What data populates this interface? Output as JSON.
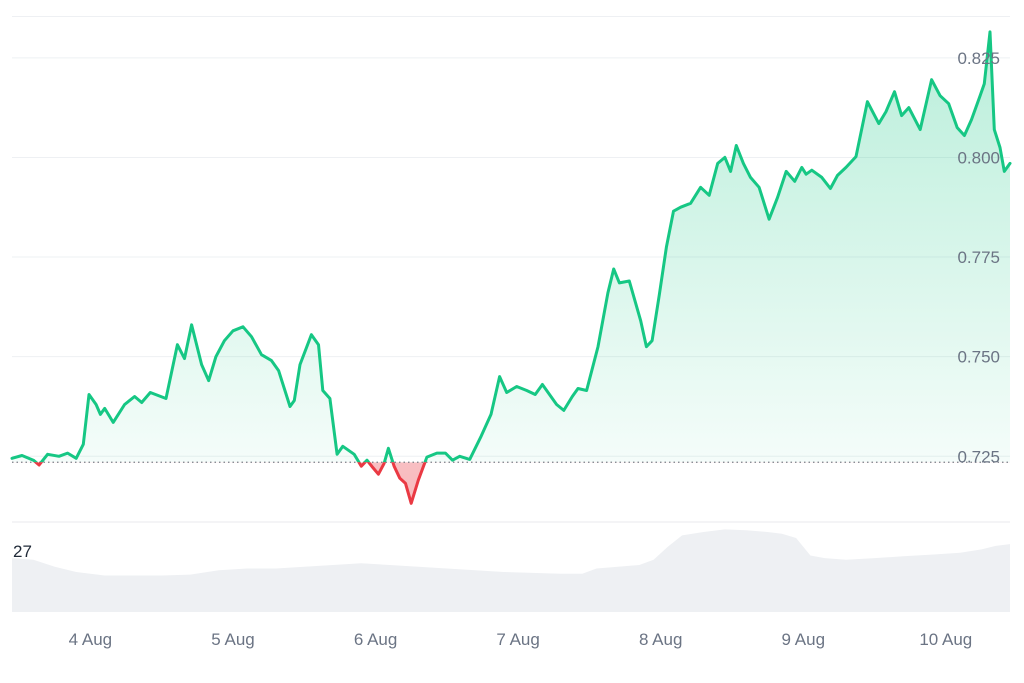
{
  "chart_data": {
    "type": "area",
    "title": "",
    "xlabel": "",
    "ylabel": "",
    "baseline": 0.7235,
    "ylim": [
      0.7085,
      0.8355
    ],
    "yticks": [
      0.725,
      0.75,
      0.775,
      0.8,
      0.825
    ],
    "ytick_labels": [
      "0.725",
      "0.750",
      "0.775",
      "0.800",
      "0.825"
    ],
    "xlim": [
      3.45,
      10.45
    ],
    "xticks": [
      4,
      5,
      6,
      7,
      8,
      9,
      10
    ],
    "xtick_labels": [
      "4 Aug",
      "5 Aug",
      "6 Aug",
      "7 Aug",
      "8 Aug",
      "9 Aug",
      "10 Aug"
    ],
    "grid": true,
    "colors": {
      "up": "#16c784",
      "down": "#ea3943",
      "baseline": "#7a7f87",
      "grid": "#eef0f3",
      "volume": "#eef0f3"
    },
    "series": [
      {
        "x": [
          3.45,
          3.52,
          3.6,
          3.64,
          3.7,
          3.78,
          3.84,
          3.9,
          3.95,
          3.99,
          4.04,
          4.07,
          4.1,
          4.16,
          4.24,
          4.31,
          4.36,
          4.42,
          4.53,
          4.61,
          4.66,
          4.71,
          4.78,
          4.83,
          4.88,
          4.94,
          5.0,
          5.07,
          5.13,
          5.2,
          5.27,
          5.32,
          5.4,
          5.43,
          5.47,
          5.55,
          5.6,
          5.63,
          5.68,
          5.73,
          5.77,
          5.85,
          5.9,
          5.94,
          5.98,
          6.02,
          6.06,
          6.09,
          6.13,
          6.17,
          6.21,
          6.25,
          6.3,
          6.36,
          6.43,
          6.49,
          6.54,
          6.59,
          6.66,
          6.74,
          6.81,
          6.87,
          6.92,
          6.99,
          7.06,
          7.12,
          7.17,
          7.27,
          7.32,
          7.38,
          7.42,
          7.48,
          7.56,
          7.63,
          7.67,
          7.71,
          7.78,
          7.86,
          7.9,
          7.94,
          7.99,
          8.04,
          8.09,
          8.14,
          8.21,
          8.28,
          8.34,
          8.4,
          8.45,
          8.49,
          8.53,
          8.58,
          8.63,
          8.69,
          8.76,
          8.82,
          8.88,
          8.94,
          8.99,
          9.02,
          9.06,
          9.13,
          9.19,
          9.24,
          9.3,
          9.37,
          9.45,
          9.53,
          9.58,
          9.64,
          9.69,
          9.74,
          9.82,
          9.9,
          9.96,
          10.02,
          10.08,
          10.13,
          10.18,
          10.24,
          10.27,
          10.31,
          10.34,
          10.38,
          10.41,
          10.45
        ],
        "y": [
          0.7245,
          0.7252,
          0.724,
          0.7228,
          0.7255,
          0.725,
          0.7258,
          0.7245,
          0.728,
          0.7405,
          0.738,
          0.7355,
          0.737,
          0.7335,
          0.738,
          0.74,
          0.7385,
          0.741,
          0.7395,
          0.753,
          0.7495,
          0.758,
          0.748,
          0.744,
          0.75,
          0.754,
          0.7565,
          0.7575,
          0.755,
          0.7505,
          0.749,
          0.7465,
          0.7375,
          0.739,
          0.748,
          0.7555,
          0.753,
          0.7415,
          0.7395,
          0.7255,
          0.7275,
          0.7255,
          0.7225,
          0.724,
          0.7222,
          0.7205,
          0.7232,
          0.727,
          0.7225,
          0.7195,
          0.7182,
          0.7132,
          0.719,
          0.7248,
          0.7258,
          0.7258,
          0.724,
          0.725,
          0.7242,
          0.73,
          0.7355,
          0.745,
          0.741,
          0.7425,
          0.7415,
          0.7405,
          0.743,
          0.738,
          0.7365,
          0.74,
          0.742,
          0.7415,
          0.7525,
          0.766,
          0.772,
          0.7685,
          0.769,
          0.759,
          0.7525,
          0.754,
          0.7655,
          0.7775,
          0.7865,
          0.7875,
          0.7885,
          0.7925,
          0.7905,
          0.7985,
          0.8,
          0.7965,
          0.803,
          0.7985,
          0.795,
          0.7925,
          0.7845,
          0.79,
          0.7965,
          0.794,
          0.7975,
          0.7958,
          0.7968,
          0.795,
          0.7922,
          0.7955,
          0.7975,
          0.8002,
          0.814,
          0.8085,
          0.8115,
          0.8165,
          0.8105,
          0.8125,
          0.807,
          0.8195,
          0.8155,
          0.8135,
          0.8075,
          0.8055,
          0.8095,
          0.8155,
          0.8185,
          0.8315,
          0.807,
          0.8025,
          0.7965,
          0.7985
        ]
      }
    ],
    "volume": {
      "label": "27",
      "x": [
        3.45,
        3.6,
        3.75,
        3.9,
        4.1,
        4.3,
        4.5,
        4.7,
        4.9,
        5.1,
        5.3,
        5.5,
        5.7,
        5.9,
        6.1,
        6.3,
        6.5,
        6.7,
        6.9,
        7.1,
        7.3,
        7.45,
        7.55,
        7.7,
        7.85,
        7.95,
        8.05,
        8.15,
        8.3,
        8.45,
        8.6,
        8.75,
        8.85,
        8.95,
        9.05,
        9.15,
        9.3,
        9.5,
        9.7,
        9.9,
        10.1,
        10.25,
        10.35,
        10.45
      ],
      "y": [
        0.62,
        0.6,
        0.52,
        0.46,
        0.42,
        0.42,
        0.42,
        0.43,
        0.48,
        0.5,
        0.5,
        0.52,
        0.54,
        0.56,
        0.54,
        0.52,
        0.5,
        0.48,
        0.46,
        0.45,
        0.44,
        0.44,
        0.5,
        0.52,
        0.54,
        0.6,
        0.75,
        0.88,
        0.92,
        0.95,
        0.94,
        0.92,
        0.9,
        0.85,
        0.65,
        0.62,
        0.6,
        0.62,
        0.64,
        0.66,
        0.68,
        0.72,
        0.76,
        0.78
      ]
    }
  }
}
